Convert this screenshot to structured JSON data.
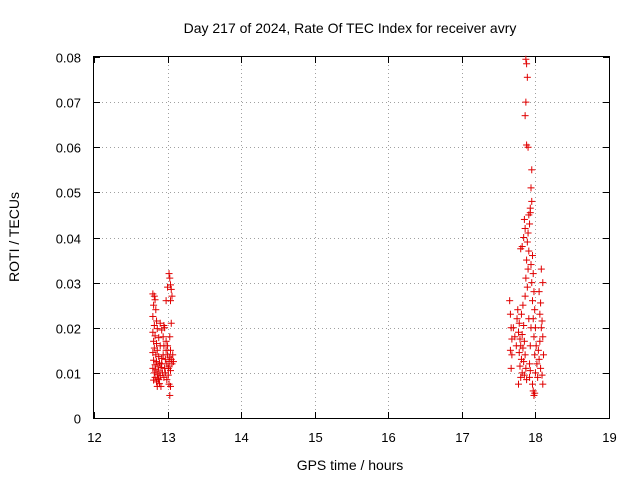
{
  "chart_data": {
    "type": "scatter",
    "title": "Day 217 of 2024, Rate Of TEC Index for receiver avry",
    "xlabel": "GPS time / hours",
    "ylabel": "ROTI / TECUs",
    "xlim": [
      12,
      19
    ],
    "ylim": [
      0,
      0.08
    ],
    "grid": true,
    "marker": "+",
    "color": "#e00000",
    "x_ticks": [
      12,
      13,
      14,
      15,
      16,
      17,
      18,
      19
    ],
    "x_tick_labels": [
      "12",
      "13",
      "14",
      "15",
      "16",
      "17",
      "18",
      "19"
    ],
    "y_ticks": [
      0,
      0.01,
      0.02,
      0.03,
      0.04,
      0.05,
      0.06,
      0.07,
      0.08
    ],
    "y_tick_labels": [
      "0",
      "0.01",
      "0.02",
      "0.03",
      "0.04",
      "0.05",
      "0.06",
      "0.07",
      "0.08"
    ],
    "series": [
      {
        "name": "ROTI",
        "points": [
          [
            12.8,
            0.0275
          ],
          [
            12.82,
            0.027
          ],
          [
            12.83,
            0.0262
          ],
          [
            12.81,
            0.025
          ],
          [
            12.84,
            0.024
          ],
          [
            12.8,
            0.0225
          ],
          [
            12.85,
            0.0215
          ],
          [
            12.82,
            0.0205
          ],
          [
            12.86,
            0.0198
          ],
          [
            12.8,
            0.019
          ],
          [
            12.83,
            0.0182
          ],
          [
            12.88,
            0.0178
          ],
          [
            12.81,
            0.017
          ],
          [
            12.85,
            0.0165
          ],
          [
            12.9,
            0.016
          ],
          [
            12.82,
            0.0155
          ],
          [
            12.86,
            0.015
          ],
          [
            12.8,
            0.0145
          ],
          [
            12.84,
            0.014
          ],
          [
            12.88,
            0.0136
          ],
          [
            12.92,
            0.0132
          ],
          [
            12.81,
            0.0128
          ],
          [
            12.85,
            0.0125
          ],
          [
            12.89,
            0.0122
          ],
          [
            12.83,
            0.0118
          ],
          [
            12.87,
            0.0115
          ],
          [
            12.91,
            0.0112
          ],
          [
            12.8,
            0.011
          ],
          [
            12.84,
            0.0107
          ],
          [
            12.88,
            0.0104
          ],
          [
            12.82,
            0.01
          ],
          [
            12.86,
            0.0097
          ],
          [
            12.9,
            0.0094
          ],
          [
            12.83,
            0.009
          ],
          [
            12.87,
            0.0087
          ],
          [
            12.81,
            0.0084
          ],
          [
            12.85,
            0.008
          ],
          [
            12.89,
            0.0076
          ],
          [
            12.86,
            0.007
          ],
          [
            12.92,
            0.012
          ],
          [
            12.94,
            0.014
          ],
          [
            12.93,
            0.01
          ],
          [
            12.95,
            0.016
          ],
          [
            12.96,
            0.011
          ],
          [
            12.94,
            0.018
          ],
          [
            12.97,
            0.013
          ],
          [
            12.95,
            0.009
          ],
          [
            12.98,
            0.015
          ],
          [
            12.96,
            0.02
          ],
          [
            12.99,
            0.012
          ],
          [
            12.97,
            0.01
          ],
          [
            13.0,
            0.014
          ],
          [
            12.98,
            0.017
          ],
          [
            13.01,
            0.011
          ],
          [
            12.99,
            0.0085
          ],
          [
            13.02,
            0.0125
          ],
          [
            13.0,
            0.016
          ],
          [
            13.03,
            0.0135
          ],
          [
            13.01,
            0.0095
          ],
          [
            13.04,
            0.015
          ],
          [
            13.02,
            0.0115
          ],
          [
            13.05,
            0.013
          ],
          [
            13.03,
            0.018
          ],
          [
            13.06,
            0.012
          ],
          [
            13.04,
            0.0105
          ],
          [
            13.07,
            0.014
          ],
          [
            13.05,
            0.021
          ],
          [
            13.08,
            0.0125
          ],
          [
            13.02,
            0.0075
          ],
          [
            13.04,
            0.007
          ],
          [
            13.03,
            0.005
          ],
          [
            12.98,
            0.026
          ],
          [
            13.0,
            0.029
          ],
          [
            13.02,
            0.032
          ],
          [
            13.03,
            0.031
          ],
          [
            13.04,
            0.0295
          ],
          [
            13.05,
            0.0285
          ],
          [
            13.06,
            0.027
          ],
          [
            13.04,
            0.026
          ],
          [
            12.95,
            0.0205
          ],
          [
            12.92,
            0.0195
          ],
          [
            12.9,
            0.021
          ],
          [
            12.88,
            0.0085
          ],
          [
            12.91,
            0.007
          ],
          [
            17.65,
            0.026
          ],
          [
            17.66,
            0.023
          ],
          [
            17.67,
            0.02
          ],
          [
            17.68,
            0.0175
          ],
          [
            17.66,
            0.015
          ],
          [
            17.68,
            0.014
          ],
          [
            17.67,
            0.011
          ],
          [
            17.7,
            0.02
          ],
          [
            17.72,
            0.018
          ],
          [
            17.74,
            0.016
          ],
          [
            17.76,
            0.024
          ],
          [
            17.75,
            0.022
          ],
          [
            17.78,
            0.021
          ],
          [
            17.77,
            0.019
          ],
          [
            17.79,
            0.0175
          ],
          [
            17.8,
            0.016
          ],
          [
            17.78,
            0.0145
          ],
          [
            17.81,
            0.013
          ],
          [
            17.79,
            0.0115
          ],
          [
            17.82,
            0.01
          ],
          [
            17.8,
            0.009
          ],
          [
            17.77,
            0.0075
          ],
          [
            17.83,
            0.025
          ],
          [
            17.81,
            0.023
          ],
          [
            17.84,
            0.0205
          ],
          [
            17.82,
            0.0185
          ],
          [
            17.85,
            0.017
          ],
          [
            17.83,
            0.0155
          ],
          [
            17.86,
            0.014
          ],
          [
            17.84,
            0.0125
          ],
          [
            17.87,
            0.011
          ],
          [
            17.85,
            0.0095
          ],
          [
            17.88,
            0.0085
          ],
          [
            17.86,
            0.027
          ],
          [
            17.89,
            0.029
          ],
          [
            17.87,
            0.031
          ],
          [
            17.9,
            0.033
          ],
          [
            17.88,
            0.035
          ],
          [
            17.91,
            0.037
          ],
          [
            17.89,
            0.039
          ],
          [
            17.9,
            0.041
          ],
          [
            17.92,
            0.043
          ],
          [
            17.91,
            0.045
          ],
          [
            17.93,
            0.0465
          ],
          [
            17.82,
            0.038
          ],
          [
            17.84,
            0.04
          ],
          [
            17.86,
            0.042
          ],
          [
            17.85,
            0.044
          ],
          [
            17.8,
            0.0375
          ],
          [
            17.9,
            0.06
          ],
          [
            17.88,
            0.0605
          ],
          [
            17.86,
            0.067
          ],
          [
            17.87,
            0.07
          ],
          [
            17.89,
            0.0755
          ],
          [
            17.88,
            0.0785
          ],
          [
            17.87,
            0.0795
          ],
          [
            17.95,
            0.055
          ],
          [
            17.94,
            0.051
          ],
          [
            17.95,
            0.048
          ],
          [
            17.93,
            0.0455
          ],
          [
            17.96,
            0.036
          ],
          [
            17.94,
            0.034
          ],
          [
            17.97,
            0.032
          ],
          [
            17.95,
            0.03
          ],
          [
            17.98,
            0.028
          ],
          [
            17.96,
            0.026
          ],
          [
            17.99,
            0.024
          ],
          [
            17.97,
            0.022
          ],
          [
            18.0,
            0.02
          ],
          [
            17.98,
            0.018
          ],
          [
            18.01,
            0.016
          ],
          [
            17.99,
            0.014
          ],
          [
            18.02,
            0.012
          ],
          [
            18.0,
            0.01
          ],
          [
            18.03,
            0.009
          ],
          [
            17.96,
            0.0075
          ],
          [
            17.97,
            0.006
          ],
          [
            17.98,
            0.005
          ],
          [
            17.99,
            0.0055
          ],
          [
            18.04,
            0.015
          ],
          [
            18.05,
            0.013
          ],
          [
            18.06,
            0.017
          ],
          [
            18.07,
            0.011
          ],
          [
            18.08,
            0.02
          ],
          [
            18.06,
            0.023
          ],
          [
            18.09,
            0.0095
          ],
          [
            18.1,
            0.0075
          ],
          [
            18.08,
            0.033
          ],
          [
            18.1,
            0.03
          ],
          [
            18.05,
            0.028
          ],
          [
            18.07,
            0.0255
          ],
          [
            18.09,
            0.0215
          ],
          [
            18.11,
            0.014
          ],
          [
            18.1,
            0.018
          ],
          [
            17.92,
            0.012
          ],
          [
            17.93,
            0.016
          ],
          [
            17.94,
            0.02
          ],
          [
            17.91,
            0.022
          ],
          [
            17.92,
            0.009
          ],
          [
            17.93,
            0.0105
          ]
        ]
      }
    ]
  }
}
